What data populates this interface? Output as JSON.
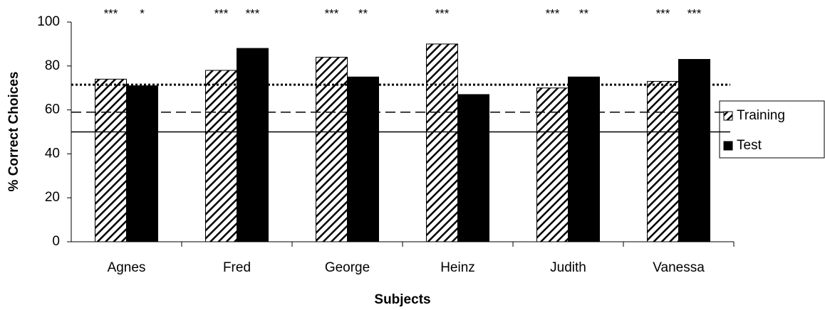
{
  "chart_data": {
    "type": "bar",
    "x_label": "Subjects",
    "y_label": "% Correct Choices",
    "categories": [
      "Agnes",
      "Fred",
      "George",
      "Heinz",
      "Judith",
      "Vanessa"
    ],
    "series": [
      {
        "name": "Training",
        "color": "#000000",
        "pattern": "hatch",
        "values": [
          74,
          78,
          84,
          90,
          70,
          73
        ],
        "annotations": [
          "***",
          "***",
          "***",
          "***",
          "***",
          "***"
        ]
      },
      {
        "name": "Test",
        "color": "#000000",
        "pattern": "solid",
        "values": [
          71,
          88,
          75,
          67,
          75,
          83
        ],
        "annotations": [
          "*",
          "***",
          "**",
          null,
          "**",
          "***"
        ]
      }
    ],
    "reference_lines": [
      {
        "value": 71.5,
        "style": "dotted"
      },
      {
        "value": 59,
        "style": "dashed"
      },
      {
        "value": 50,
        "style": "solid"
      }
    ],
    "ylim": [
      0,
      100
    ],
    "yticks": [
      0,
      20,
      40,
      60,
      80,
      100
    ],
    "grid": false,
    "legend": "right"
  }
}
